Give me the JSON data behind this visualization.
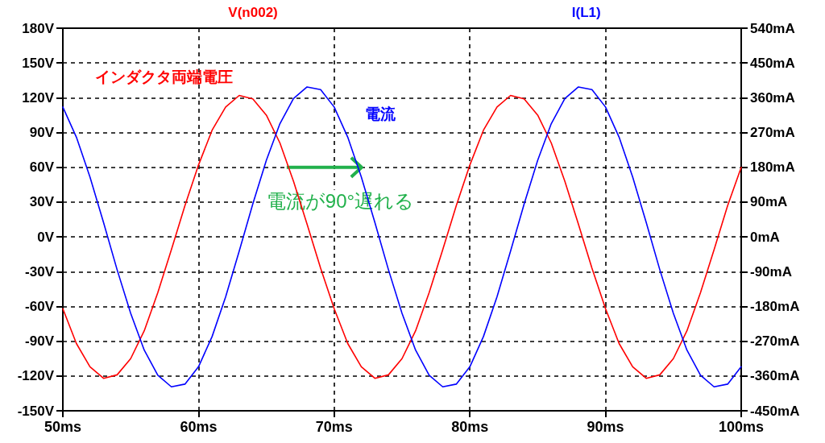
{
  "chart_data": {
    "type": "line",
    "x": [
      50,
      51,
      52,
      53,
      54,
      55,
      56,
      57,
      58,
      59,
      60,
      61,
      62,
      63,
      64,
      65,
      66,
      67,
      68,
      69,
      70,
      71,
      72,
      73,
      74,
      75,
      76,
      77,
      78,
      79,
      80,
      81,
      82,
      83,
      84,
      85,
      86,
      87,
      88,
      89,
      90,
      91,
      92,
      93,
      94,
      95,
      96,
      97,
      98,
      99,
      100
    ],
    "series": [
      {
        "name": "V(n002)",
        "color": "#ff0000",
        "values": [
          -62,
          -92,
          -112,
          -122,
          -119,
          -105,
          -81,
          -48,
          -11,
          27,
          62,
          92,
          112,
          122,
          119,
          105,
          81,
          48,
          11,
          -27,
          -62,
          -92,
          -112,
          -122,
          -119,
          -105,
          -81,
          -48,
          -11,
          27,
          62,
          92,
          112,
          122,
          119,
          105,
          81,
          48,
          11,
          -27,
          -62,
          -92,
          -112,
          -122,
          -119,
          -105,
          -81,
          -48,
          -11,
          27,
          60
        ]
      },
      {
        "name": "I(L1)",
        "color": "#0000ff",
        "axis": "y2",
        "values": [
          336,
          258,
          155,
          37,
          -85,
          -198,
          -293,
          -358,
          -388,
          -381,
          -336,
          -258,
          -155,
          -37,
          85,
          198,
          293,
          358,
          388,
          381,
          336,
          258,
          155,
          37,
          -85,
          -198,
          -293,
          -358,
          -388,
          -381,
          -336,
          -258,
          -155,
          -37,
          85,
          198,
          293,
          358,
          388,
          381,
          336,
          258,
          155,
          37,
          -85,
          -198,
          -293,
          -358,
          -388,
          -381,
          -336
        ]
      }
    ],
    "xlim": [
      50,
      100
    ],
    "xticks": [
      {
        "value": 50,
        "label": "50ms"
      },
      {
        "value": 60,
        "label": "60ms"
      },
      {
        "value": 70,
        "label": "70ms"
      },
      {
        "value": 80,
        "label": "80ms"
      },
      {
        "value": 90,
        "label": "90ms"
      },
      {
        "value": 100,
        "label": "100ms"
      }
    ],
    "ylim": [
      -150,
      180
    ],
    "yticks": [
      {
        "value": -150,
        "label": "-150V"
      },
      {
        "value": -120,
        "label": "-120V"
      },
      {
        "value": -90,
        "label": "-90V"
      },
      {
        "value": -60,
        "label": "-60V"
      },
      {
        "value": -30,
        "label": "-30V"
      },
      {
        "value": 0,
        "label": "0V"
      },
      {
        "value": 30,
        "label": "30V"
      },
      {
        "value": 60,
        "label": "60V"
      },
      {
        "value": 90,
        "label": "90V"
      },
      {
        "value": 120,
        "label": "120V"
      },
      {
        "value": 150,
        "label": "150V"
      },
      {
        "value": 180,
        "label": "180V"
      }
    ],
    "y2lim": [
      -450,
      540
    ],
    "y2ticks": [
      {
        "value": -450,
        "label": "-450mA"
      },
      {
        "value": -360,
        "label": "-360mA"
      },
      {
        "value": -270,
        "label": "-270mA"
      },
      {
        "value": -180,
        "label": "-180mA"
      },
      {
        "value": -90,
        "label": "-90mA"
      },
      {
        "value": 0,
        "label": "0mA"
      },
      {
        "value": 90,
        "label": "90mA"
      },
      {
        "value": 180,
        "label": "180mA"
      },
      {
        "value": 270,
        "label": "270mA"
      },
      {
        "value": 360,
        "label": "360mA"
      },
      {
        "value": 450,
        "label": "450mA"
      },
      {
        "value": 540,
        "label": "540mA"
      }
    ],
    "annotations": [
      "インダクタ両端電圧",
      "電流",
      {
        "text": "電流が90°遅れる",
        "x": 66.5,
        "y": 60
      }
    ],
    "grid": true,
    "legend": "top",
    "marker": "none",
    "line_style": "solid"
  }
}
